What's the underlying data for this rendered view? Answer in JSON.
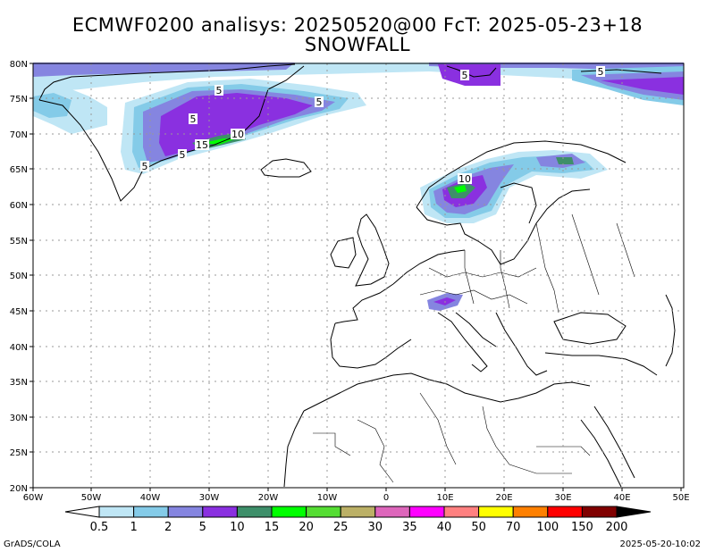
{
  "header": {
    "title_line1": "ECMWF0200 analisys: 20250520@00 FcT: 2025-05-23+18",
    "title_line2": "SNOWFALL"
  },
  "axes": {
    "lon_labels": [
      "60W",
      "50W",
      "40W",
      "30W",
      "20W",
      "10W",
      "0",
      "10E",
      "20E",
      "30E",
      "40E",
      "50E"
    ],
    "lat_labels": [
      "80N",
      "75N",
      "70N",
      "65N",
      "60N",
      "55N",
      "50N",
      "45N",
      "40N",
      "35N",
      "30N",
      "25N",
      "20N"
    ]
  },
  "contour_labels": [
    {
      "text": "5",
      "region": "greenland-north"
    },
    {
      "text": "5",
      "region": "greenland-east-sea"
    },
    {
      "text": "5",
      "region": "greenland-central"
    },
    {
      "text": "10",
      "region": "greenland-east-coast"
    },
    {
      "text": "15",
      "region": "greenland-east-coast"
    },
    {
      "text": "5",
      "region": "greenland-southeast"
    },
    {
      "text": "5",
      "region": "greenland-south"
    },
    {
      "text": "5",
      "region": "svalbard"
    },
    {
      "text": "5",
      "region": "franz-josef"
    },
    {
      "text": "10",
      "region": "norway"
    }
  ],
  "colorbar": {
    "labels": [
      "0.5",
      "1",
      "2",
      "5",
      "10",
      "15",
      "20",
      "25",
      "30",
      "35",
      "40",
      "50",
      "70",
      "100",
      "150",
      "200"
    ],
    "colors": [
      "#bfe6f5",
      "#84cbe8",
      "#8585e0",
      "#8a30e0",
      "#3e8f6a",
      "#00ff00",
      "#55dd33",
      "#bbb066",
      "#dd66bb",
      "#ff00ff",
      "#ff8080",
      "#ffff00",
      "#ff8000",
      "#ff0000",
      "#800000"
    ]
  },
  "footer": {
    "credit": "GrADS/COLA",
    "timestamp": "2025-05-20-10:02"
  }
}
